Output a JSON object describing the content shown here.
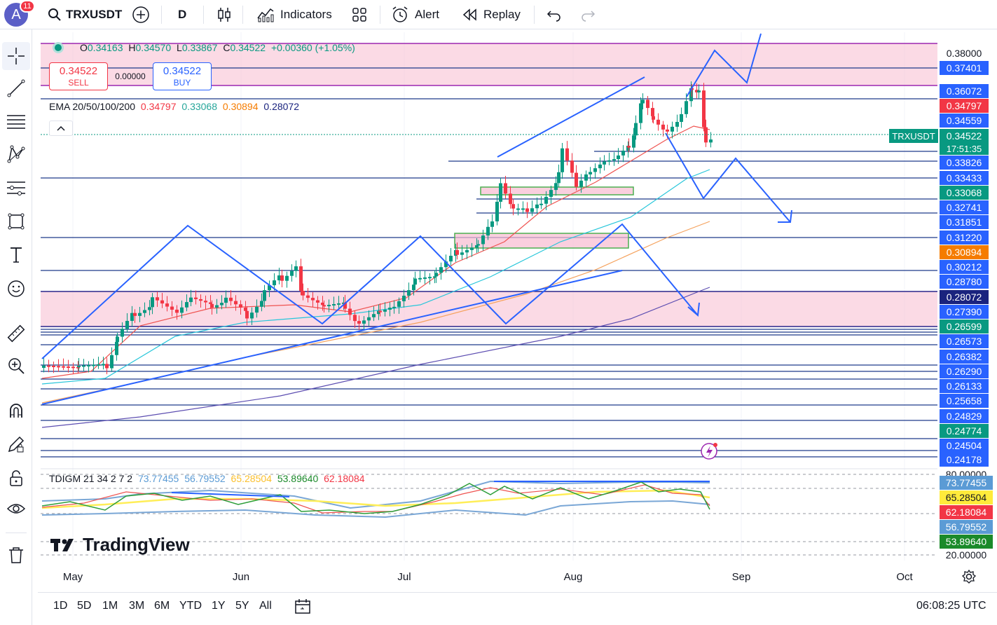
{
  "header": {
    "avatar_letter": "A",
    "avatar_badge": "11",
    "symbol": "TRXUSDT",
    "interval": "D",
    "indicators_label": "Indicators",
    "alert_label": "Alert",
    "replay_label": "Replay"
  },
  "legend": {
    "ohlc": {
      "o_label": "O",
      "o": "0.34163",
      "h_label": "H",
      "h": "0.34570",
      "l_label": "L",
      "l": "0.33867",
      "c_label": "C",
      "c": "0.34522",
      "change": "+0.00360 (+1.05%)"
    },
    "sell_price": "0.34522",
    "sell_label": "SELL",
    "spread": "0.00000",
    "buy_price": "0.34522",
    "buy_label": "BUY",
    "ema_label": "EMA 20/50/100/200",
    "ema": [
      "0.34797",
      "0.33068",
      "0.30894",
      "0.28072"
    ],
    "tdigm_label": "TDIGM 21 34 2 7 2",
    "tdigm": [
      "73.77455",
      "56.79552",
      "65.28504",
      "53.89640",
      "62.18084"
    ]
  },
  "price_axis": {
    "labels": [
      {
        "v": "0.38000",
        "y": 76
      },
      {
        "v": "0.37401",
        "y": 97,
        "bg": "#2962ff"
      },
      {
        "v": "0.36072",
        "y": 130,
        "bg": "#2962ff"
      },
      {
        "v": "0.34797",
        "y": 151,
        "bg": "#f23645"
      },
      {
        "v": "0.34559",
        "y": 172,
        "bg": "#2962ff"
      },
      {
        "v": "0.34522",
        "y": 194,
        "bg": "#089981"
      },
      {
        "v": "0.33826",
        "y": 232,
        "bg": "#2962ff"
      },
      {
        "v": "0.33433",
        "y": 254,
        "bg": "#2962ff"
      },
      {
        "v": "0.33068",
        "y": 275,
        "bg": "#089981"
      },
      {
        "v": "0.32741",
        "y": 296,
        "bg": "#2962ff"
      },
      {
        "v": "0.31851",
        "y": 317,
        "bg": "#2962ff"
      },
      {
        "v": "0.31220",
        "y": 339,
        "bg": "#2962ff"
      },
      {
        "v": "0.30894",
        "y": 360,
        "bg": "#f57c00"
      },
      {
        "v": "0.30212",
        "y": 381,
        "bg": "#2962ff"
      },
      {
        "v": "0.28780",
        "y": 402,
        "bg": "#2962ff"
      },
      {
        "v": "0.28072",
        "y": 424,
        "bg": "#1a237e"
      },
      {
        "v": "0.27390",
        "y": 445,
        "bg": "#2962ff"
      },
      {
        "v": "0.26599",
        "y": 466,
        "bg": "#089981"
      },
      {
        "v": "0.26573",
        "y": 487,
        "bg": "#2962ff"
      },
      {
        "v": "0.26382",
        "y": 509,
        "bg": "#2962ff"
      },
      {
        "v": "0.26290",
        "y": 530,
        "bg": "#2962ff"
      },
      {
        "v": "0.26133",
        "y": 551,
        "bg": "#2962ff"
      },
      {
        "v": "0.25658",
        "y": 572,
        "bg": "#2962ff"
      },
      {
        "v": "0.24829",
        "y": 594,
        "bg": "#2962ff"
      },
      {
        "v": "0.24774",
        "y": 615,
        "bg": "#089981"
      },
      {
        "v": "0.24504",
        "y": 636,
        "bg": "#2962ff"
      },
      {
        "v": "0.24178",
        "y": 656,
        "bg": "#2962ff"
      }
    ],
    "symbol_tag": "TRXUSDT",
    "countdown": "17:51:35"
  },
  "osc_axis": {
    "labels": [
      {
        "v": "80.00000",
        "y": 677
      },
      {
        "v": "73.77455",
        "y": 689,
        "bg": "#5b9bd5"
      },
      {
        "v": "65.28504",
        "y": 710,
        "bg": "#ffeb3b",
        "fg": "#131722"
      },
      {
        "v": "62.18084",
        "y": 731,
        "bg": "#f23645"
      },
      {
        "v": "56.79552",
        "y": 752,
        "bg": "#5b9bd5"
      },
      {
        "v": "53.89640",
        "y": 773,
        "bg": "#1b8a2a"
      },
      {
        "v": "20.00000",
        "y": 792
      }
    ]
  },
  "time_axis": [
    "May",
    "Jun",
    "Jul",
    "Aug",
    "Sep",
    "Oct"
  ],
  "ranges": [
    "1D",
    "5D",
    "1M",
    "3M",
    "6M",
    "YTD",
    "1Y",
    "5Y",
    "All"
  ],
  "clock": "06:08:25 UTC",
  "watermark": "TradingView"
}
